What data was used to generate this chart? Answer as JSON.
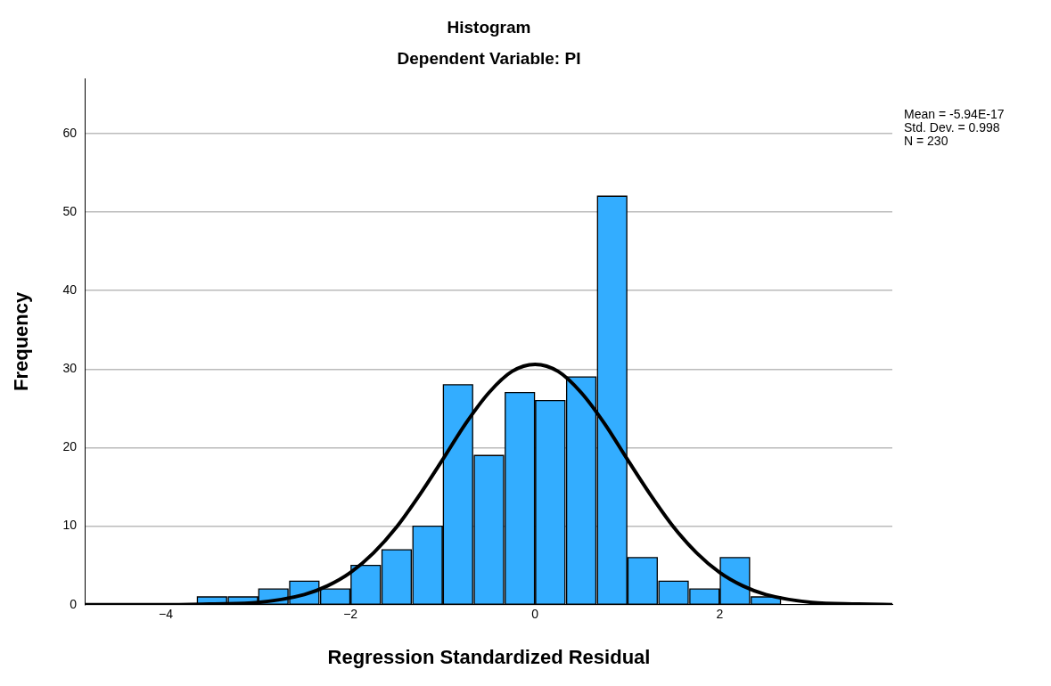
{
  "chart_data": {
    "type": "histogram",
    "title": "Histogram",
    "subtitle": "Dependent Variable: PI",
    "xlabel": "Regression Standardized Residual",
    "ylabel": "Frequency",
    "bins": [
      -3.67,
      -3.33,
      -3,
      -2.67,
      -2.33,
      -2,
      -1.67,
      -1.33,
      -1,
      -0.67,
      -0.33,
      0,
      0.33,
      0.67,
      1,
      1.33,
      1.67,
      2,
      2.33,
      2.67
    ],
    "values": [
      1,
      1,
      2,
      3,
      2,
      5,
      7,
      10,
      28,
      19,
      27,
      26,
      29,
      52,
      6,
      3,
      2,
      6,
      1
    ],
    "color": "#33adff",
    "series": [
      {
        "type": "line",
        "color": "#000000",
        "x": [
          -4.87,
          -4,
          -3.5,
          -3,
          -2.5,
          -2.25,
          -2,
          -1.75,
          -1.5,
          -1.25,
          -1,
          -0.75,
          -0.5,
          -0.25,
          0,
          0.25,
          0.5,
          0.75,
          1,
          1.25,
          1.5,
          1.75,
          2,
          2.25,
          2.5,
          3,
          3.5,
          3.87
        ],
        "values": [
          0,
          0,
          0.1,
          0.3,
          1.3,
          2.4,
          4.1,
          6.6,
          9.9,
          14,
          18.5,
          23.1,
          27,
          29.7,
          30.6,
          29.7,
          27,
          23.1,
          18.5,
          14,
          9.9,
          6.6,
          4.1,
          2.4,
          1.3,
          0.3,
          0.1,
          0
        ]
      }
    ],
    "xlim": [
      -4.87,
      3.87
    ],
    "xticks": [
      -4,
      -2,
      0,
      2
    ],
    "ylim": [
      0,
      67
    ],
    "yticks": [
      0,
      10,
      20,
      30,
      40,
      50,
      60
    ],
    "grid": "y",
    "legend": false,
    "annotations": [
      "Mean = -5.94E-17",
      "Std. Dev. = 0.998",
      "N = 230"
    ]
  }
}
